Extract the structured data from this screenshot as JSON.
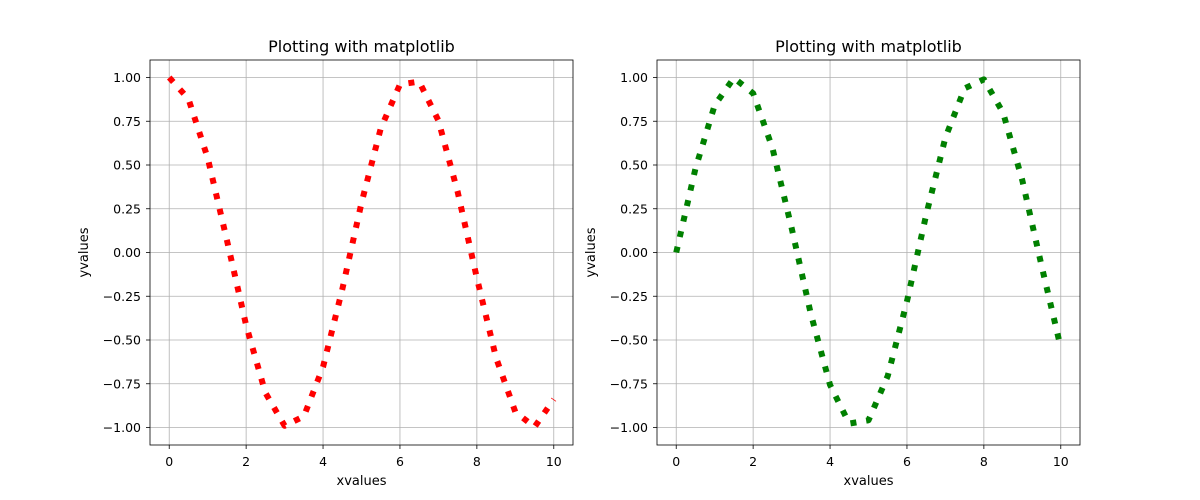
{
  "chart_data": [
    {
      "type": "line",
      "title": "Plotting with matplotlib",
      "xlabel": "xvalues",
      "ylabel": "yvalues",
      "xlim": [
        -0.5,
        10.5
      ],
      "ylim": [
        -1.1,
        1.1
      ],
      "xticks": [
        0,
        2,
        4,
        6,
        8,
        10
      ],
      "xtick_labels": [
        "0",
        "2",
        "4",
        "6",
        "8",
        "10"
      ],
      "yticks": [
        1.0,
        0.75,
        0.5,
        0.25,
        0.0,
        -0.25,
        -0.5,
        -0.75,
        -1.0
      ],
      "ytick_labels": [
        "1.00",
        "0.75",
        "0.50",
        "0.25",
        "0.00",
        "−0.25",
        "−0.50",
        "−0.75",
        "−1.00"
      ],
      "grid": true,
      "series": [
        {
          "color": "#ff0000",
          "linestyle": "dotted",
          "x": [
            0,
            0.5,
            1,
            1.5,
            2,
            2.5,
            3,
            3.5,
            4,
            4.5,
            5,
            5.5,
            6,
            6.5,
            7,
            7.5,
            8,
            8.5,
            9,
            9.5,
            10
          ],
          "y": [
            1.0,
            0.8776,
            0.5403,
            0.0707,
            -0.4161,
            -0.8011,
            -0.99,
            -0.9365,
            -0.6536,
            -0.2108,
            0.2837,
            0.7087,
            0.9602,
            0.9766,
            0.7539,
            0.3466,
            -0.1455,
            -0.602,
            -0.9111,
            -0.9972,
            -0.8391
          ]
        }
      ]
    },
    {
      "type": "line",
      "title": "Plotting with matplotlib",
      "xlabel": "xvalues",
      "ylabel": "yvalues",
      "xlim": [
        -0.5,
        10.5
      ],
      "ylim": [
        -1.1,
        1.1
      ],
      "xticks": [
        0,
        2,
        4,
        6,
        8,
        10
      ],
      "xtick_labels": [
        "0",
        "2",
        "4",
        "6",
        "8",
        "10"
      ],
      "yticks": [
        1.0,
        0.75,
        0.5,
        0.25,
        0.0,
        -0.25,
        -0.5,
        -0.75,
        -1.0
      ],
      "ytick_labels": [
        "1.00",
        "0.75",
        "0.50",
        "0.25",
        "0.00",
        "−0.25",
        "−0.50",
        "−0.75",
        "−1.00"
      ],
      "grid": true,
      "series": [
        {
          "color": "#008000",
          "linestyle": "dotted",
          "x": [
            0,
            0.5,
            1,
            1.5,
            2,
            2.5,
            3,
            3.5,
            4,
            4.5,
            5,
            5.5,
            6,
            6.5,
            7,
            7.5,
            8,
            8.5,
            9,
            9.5,
            10
          ],
          "y": [
            0.0,
            0.4794,
            0.8415,
            0.9975,
            0.9093,
            0.5985,
            0.1411,
            -0.3508,
            -0.7568,
            -0.9775,
            -0.9589,
            -0.7055,
            -0.2794,
            0.2151,
            0.657,
            0.938,
            0.9894,
            0.7985,
            0.4121,
            -0.0752,
            -0.544
          ]
        }
      ]
    }
  ]
}
